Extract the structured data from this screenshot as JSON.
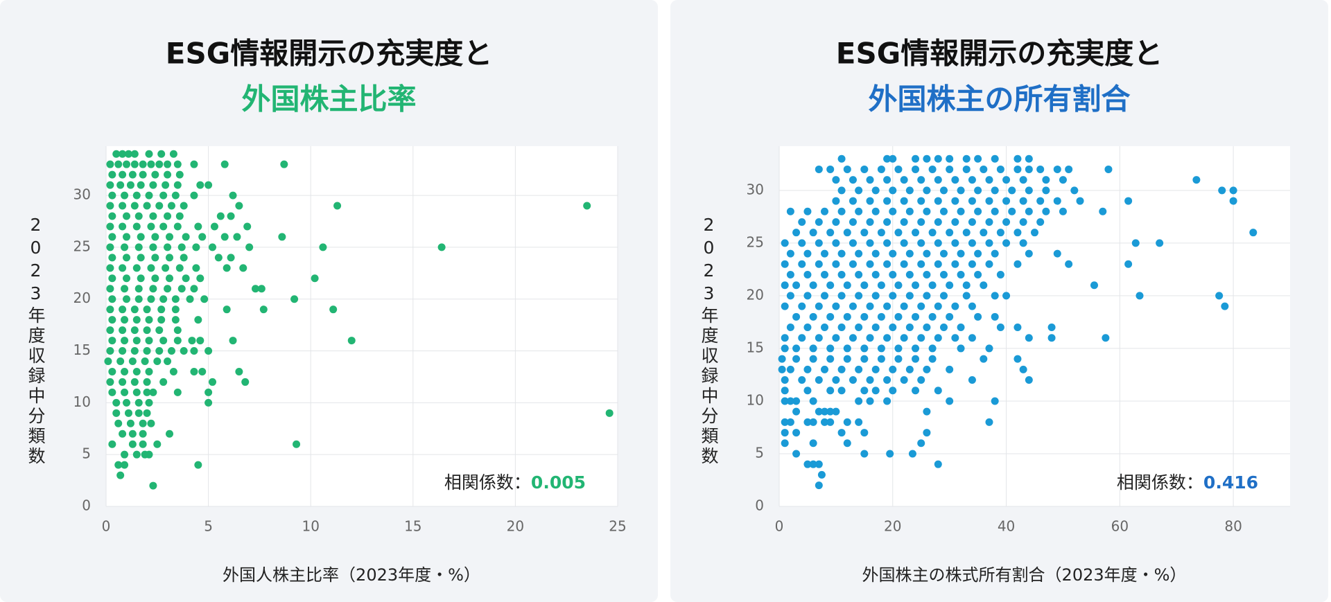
{
  "chart_data": [
    {
      "type": "scatter",
      "title": "ESG情報開示の充実度と",
      "subtitle": "外国株主比率",
      "title_color": "#22b573",
      "color": "#22b573",
      "x_label": "外国人株主比率（2023年度・%）",
      "y_label": "2023年度収録中分類数",
      "annotation_label": "相関係数：",
      "annotation_value": "0.005",
      "xlim": [
        0,
        25
      ],
      "ylim": [
        0,
        34.75
      ],
      "xticks": [
        0,
        5,
        10,
        15,
        20,
        25
      ],
      "yticks": [
        0,
        5,
        10,
        15,
        20,
        25,
        30
      ],
      "grid": true,
      "x": [
        0.5,
        0.8,
        1.1,
        1.4,
        2.1,
        2.7,
        3.3,
        0.2,
        0.6,
        1,
        1.4,
        1.8,
        2.2,
        2.6,
        3,
        3.5,
        4.3,
        5.8,
        8.7,
        0.3,
        0.8,
        1.3,
        1.8,
        2.4,
        3,
        3.6,
        0.2,
        0.7,
        1.2,
        1.7,
        2.3,
        2.9,
        3.5,
        4.6,
        5,
        0.3,
        0.9,
        1.5,
        2.1,
        2.8,
        3.4,
        4.3,
        6.2,
        0.2,
        0.8,
        1.4,
        2,
        2.6,
        3.2,
        3.8,
        6.5,
        11.3,
        23.5,
        0.3,
        1,
        1.6,
        2.3,
        3,
        3.6,
        5.6,
        6.1,
        0.2,
        0.8,
        1.5,
        2.2,
        2.8,
        3.5,
        4.5,
        5.3,
        6.9,
        0.3,
        1,
        1.7,
        2.4,
        3.1,
        3.9,
        4.7,
        5.8,
        6.4,
        8.6,
        0.2,
        0.9,
        1.6,
        2.3,
        3,
        3.7,
        4.4,
        5.2,
        7,
        10.6,
        16.4,
        0.3,
        1,
        1.7,
        2.4,
        3.1,
        3.8,
        5.5,
        6.1,
        0.2,
        0.8,
        1.5,
        2.2,
        2.9,
        3.6,
        4.4,
        5.9,
        6.7,
        0.3,
        1,
        1.7,
        2.4,
        3.1,
        3.9,
        4.6,
        10.2,
        0.2,
        0.9,
        1.6,
        2.3,
        3,
        3.7,
        4.3,
        7.3,
        7.6,
        0.3,
        1,
        1.6,
        2.2,
        2.8,
        3.4,
        4.1,
        4.8,
        9.2,
        0.2,
        0.8,
        1.4,
        2,
        2.7,
        3.4,
        5.9,
        7.7,
        11.1,
        0.3,
        0.9,
        1.5,
        2.1,
        2.7,
        3.4,
        4.5,
        0.2,
        0.8,
        1.4,
        2,
        2.6,
        3.5,
        0.3,
        0.9,
        1.5,
        2.1,
        2.8,
        3.5,
        4.2,
        4.6,
        6.2,
        12,
        0.2,
        0.8,
        1.4,
        2,
        2.6,
        3.2,
        3.8,
        4.3,
        5,
        0.1,
        0.7,
        1.3,
        1.9,
        2.5,
        3,
        0.3,
        0.9,
        1.5,
        2.1,
        3.3,
        4.3,
        4.7,
        6.5,
        0.2,
        0.8,
        1.4,
        2,
        2.8,
        5.2,
        6.8,
        0.3,
        0.9,
        1.5,
        2,
        2.3,
        3.5,
        5,
        0.5,
        1,
        1.6,
        2.1,
        5,
        0.5,
        1.1,
        1.6,
        2,
        0.6,
        1.2,
        1.8,
        2.2,
        0.8,
        1.3,
        1.8,
        3.1,
        0.3,
        1.3,
        1.8,
        2.5,
        9.3,
        0.9,
        1.5,
        1.9,
        2.1,
        0.6,
        0.9,
        4.5,
        0.7,
        2.3,
        24.6
      ],
      "values": [
        34,
        34,
        34,
        34,
        34,
        34,
        34,
        33,
        33,
        33,
        33,
        33,
        33,
        33,
        33,
        33,
        33,
        33,
        33,
        32,
        32,
        32,
        32,
        32,
        32,
        32,
        31,
        31,
        31,
        31,
        31,
        31,
        31,
        31,
        31,
        30,
        30,
        30,
        30,
        30,
        30,
        30,
        30,
        29,
        29,
        29,
        29,
        29,
        29,
        29,
        29,
        29,
        29,
        28,
        28,
        28,
        28,
        28,
        28,
        28,
        28,
        27,
        27,
        27,
        27,
        27,
        27,
        27,
        27,
        27,
        26,
        26,
        26,
        26,
        26,
        26,
        26,
        26,
        26,
        26,
        25,
        25,
        25,
        25,
        25,
        25,
        25,
        25,
        25,
        25,
        25,
        24,
        24,
        24,
        24,
        24,
        24,
        24,
        24,
        23,
        23,
        23,
        23,
        23,
        23,
        23,
        23,
        23,
        22,
        22,
        22,
        22,
        22,
        22,
        22,
        22,
        21,
        21,
        21,
        21,
        21,
        21,
        21,
        21,
        21,
        20,
        20,
        20,
        20,
        20,
        20,
        20,
        20,
        20,
        19,
        19,
        19,
        19,
        19,
        19,
        19,
        19,
        19,
        18,
        18,
        18,
        18,
        18,
        18,
        18,
        17,
        17,
        17,
        17,
        17,
        17,
        16,
        16,
        16,
        16,
        16,
        16,
        16,
        16,
        16,
        16,
        15,
        15,
        15,
        15,
        15,
        15,
        15,
        15,
        15,
        14,
        14,
        14,
        14,
        14,
        14,
        13,
        13,
        13,
        13,
        13,
        13,
        13,
        13,
        12,
        12,
        12,
        12,
        12,
        12,
        12,
        11,
        11,
        11,
        11,
        11,
        11,
        11,
        10,
        10,
        10,
        10,
        10,
        9,
        9,
        9,
        9,
        8,
        8,
        8,
        8,
        7,
        7,
        7,
        7,
        6,
        6,
        6,
        6,
        6,
        5,
        5,
        5,
        5,
        4,
        4,
        4,
        3,
        2,
        9
      ]
    },
    {
      "type": "scatter",
      "title": "ESG情報開示の充実度と",
      "subtitle": "外国株主の所有割合",
      "title_color": "#1f6fc6",
      "color": "#1a9ad6",
      "x_label": "外国株主の株式所有割合（2023年度・%）",
      "y_label": "2023年度収録中分類数",
      "annotation_label": "相関係数：",
      "annotation_value": "0.416",
      "xlim": [
        0,
        90
      ],
      "ylim": [
        0,
        34.2
      ],
      "xticks": [
        0,
        20,
        40,
        60,
        80
      ],
      "yticks": [
        0,
        5,
        10,
        15,
        20,
        25,
        30
      ],
      "grid": true,
      "x": [
        11,
        19,
        20,
        24,
        26,
        28,
        30,
        33,
        35,
        38,
        42,
        44,
        7,
        9,
        12,
        15,
        18,
        21,
        24,
        27,
        30,
        33,
        36,
        39,
        42,
        44,
        46,
        49,
        51,
        58,
        10,
        13,
        16,
        19,
        22,
        25,
        28,
        31,
        34,
        37,
        40,
        43,
        47,
        50,
        73.5,
        11,
        14,
        17,
        20,
        23,
        26,
        29,
        32,
        35,
        38,
        41,
        44,
        47,
        52,
        78,
        80,
        10,
        13,
        16,
        19,
        22,
        25,
        28,
        31,
        34,
        37,
        40,
        43,
        46,
        49,
        53,
        61.5,
        80,
        2,
        5,
        8,
        11,
        14,
        17,
        20,
        23,
        26,
        29,
        32,
        35,
        38,
        41,
        44,
        47,
        50,
        57,
        4,
        7,
        10,
        13,
        16,
        19,
        22,
        25,
        28,
        31,
        34,
        37,
        40,
        43,
        46,
        3,
        6,
        9,
        12,
        15,
        18,
        21,
        24,
        27,
        30,
        33,
        36,
        39,
        42,
        45,
        83.5,
        1,
        4,
        7,
        10,
        13,
        16,
        19,
        22,
        25,
        28,
        31,
        34,
        37,
        40,
        43,
        62.8,
        67,
        2,
        5,
        8,
        11,
        14,
        17,
        20,
        23,
        26,
        29,
        32,
        35,
        38,
        44,
        49,
        1,
        4,
        7,
        10,
        13,
        16,
        19,
        22,
        25,
        28,
        31,
        34,
        37,
        42,
        51,
        61.5,
        2,
        5,
        8,
        11,
        14,
        17,
        20,
        23,
        26,
        29,
        32,
        35,
        39,
        1,
        3,
        6,
        9,
        12,
        15,
        18,
        21,
        24,
        27,
        30,
        33,
        36,
        55.5,
        2,
        5,
        8,
        11,
        14,
        17,
        20,
        23,
        26,
        29,
        33,
        38,
        40,
        63.5,
        77.5,
        1,
        4,
        7,
        10,
        13,
        16,
        19,
        22,
        25,
        28,
        31,
        34,
        78.5,
        3,
        6,
        9,
        12,
        15,
        18,
        21,
        24,
        27,
        30,
        35,
        38,
        2,
        5,
        8,
        11,
        14,
        17,
        20,
        23,
        26,
        29,
        32,
        39,
        42,
        48,
        1,
        4,
        7,
        10,
        13,
        16,
        19,
        22,
        25,
        28,
        31,
        34,
        44,
        48,
        57.5,
        1,
        3,
        6,
        9,
        12,
        15,
        18,
        21,
        24,
        27,
        32,
        37,
        0.5,
        3,
        6,
        9,
        12,
        15,
        18,
        21,
        24,
        27,
        36,
        42,
        0.5,
        2,
        5,
        8,
        11,
        14,
        17,
        20,
        23,
        26,
        30,
        43,
        1,
        4,
        7,
        10,
        13,
        16,
        19,
        22,
        25,
        34,
        44,
        1,
        5,
        9,
        11,
        15,
        17,
        20,
        24,
        28,
        1,
        2,
        3,
        6,
        14,
        16,
        19,
        30,
        38,
        3,
        7,
        8,
        9,
        10,
        26,
        1,
        2,
        5,
        6,
        8,
        9,
        12,
        14,
        37,
        1,
        3,
        11,
        15,
        26,
        1,
        6,
        12,
        25,
        3,
        15,
        19.5,
        23.5,
        5,
        6,
        7,
        28,
        7.5,
        7
      ],
      "values": [
        33,
        33,
        33,
        33,
        33,
        33,
        33,
        33,
        33,
        33,
        33,
        33,
        32,
        32,
        32,
        32,
        32,
        32,
        32,
        32,
        32,
        32,
        32,
        32,
        32,
        32,
        32,
        32,
        32,
        32,
        31,
        31,
        31,
        31,
        31,
        31,
        31,
        31,
        31,
        31,
        31,
        31,
        31,
        31,
        31,
        30,
        30,
        30,
        30,
        30,
        30,
        30,
        30,
        30,
        30,
        30,
        30,
        30,
        30,
        30,
        30,
        29,
        29,
        29,
        29,
        29,
        29,
        29,
        29,
        29,
        29,
        29,
        29,
        29,
        29,
        29,
        29,
        29,
        28,
        28,
        28,
        28,
        28,
        28,
        28,
        28,
        28,
        28,
        28,
        28,
        28,
        28,
        28,
        28,
        28,
        28,
        27,
        27,
        27,
        27,
        27,
        27,
        27,
        27,
        27,
        27,
        27,
        27,
        27,
        27,
        27,
        26,
        26,
        26,
        26,
        26,
        26,
        26,
        26,
        26,
        26,
        26,
        26,
        26,
        26,
        26,
        26,
        25,
        25,
        25,
        25,
        25,
        25,
        25,
        25,
        25,
        25,
        25,
        25,
        25,
        25,
        25,
        25,
        25,
        24,
        24,
        24,
        24,
        24,
        24,
        24,
        24,
        24,
        24,
        24,
        24,
        24,
        24,
        24,
        23,
        23,
        23,
        23,
        23,
        23,
        23,
        23,
        23,
        23,
        23,
        23,
        23,
        23,
        23,
        23,
        22,
        22,
        22,
        22,
        22,
        22,
        22,
        22,
        22,
        22,
        22,
        22,
        22,
        21,
        21,
        21,
        21,
        21,
        21,
        21,
        21,
        21,
        21,
        21,
        21,
        21,
        21,
        20,
        20,
        20,
        20,
        20,
        20,
        20,
        20,
        20,
        20,
        20,
        20,
        20,
        20,
        20,
        19,
        19,
        19,
        19,
        19,
        19,
        19,
        19,
        19,
        19,
        19,
        19,
        19,
        18,
        18,
        18,
        18,
        18,
        18,
        18,
        18,
        18,
        18,
        18,
        18,
        17,
        17,
        17,
        17,
        17,
        17,
        17,
        17,
        17,
        17,
        17,
        17,
        17,
        17,
        16,
        16,
        16,
        16,
        16,
        16,
        16,
        16,
        16,
        16,
        16,
        16,
        16,
        16,
        16,
        15,
        15,
        15,
        15,
        15,
        15,
        15,
        15,
        15,
        15,
        15,
        15,
        14,
        14,
        14,
        14,
        14,
        14,
        14,
        14,
        14,
        14,
        14,
        14,
        13,
        13,
        13,
        13,
        13,
        13,
        13,
        13,
        13,
        13,
        13,
        13,
        12,
        12,
        12,
        12,
        12,
        12,
        12,
        12,
        12,
        12,
        12,
        11,
        11,
        11,
        11,
        11,
        11,
        11,
        11,
        11,
        10,
        10,
        10,
        10,
        10,
        10,
        10,
        10,
        10,
        9,
        9,
        9,
        9,
        9,
        9,
        8,
        8,
        8,
        8,
        8,
        8,
        8,
        8,
        8,
        7,
        7,
        7,
        7,
        7,
        6,
        6,
        6,
        6,
        5,
        5,
        5,
        5,
        4,
        4,
        4,
        4,
        3,
        2
      ]
    }
  ]
}
